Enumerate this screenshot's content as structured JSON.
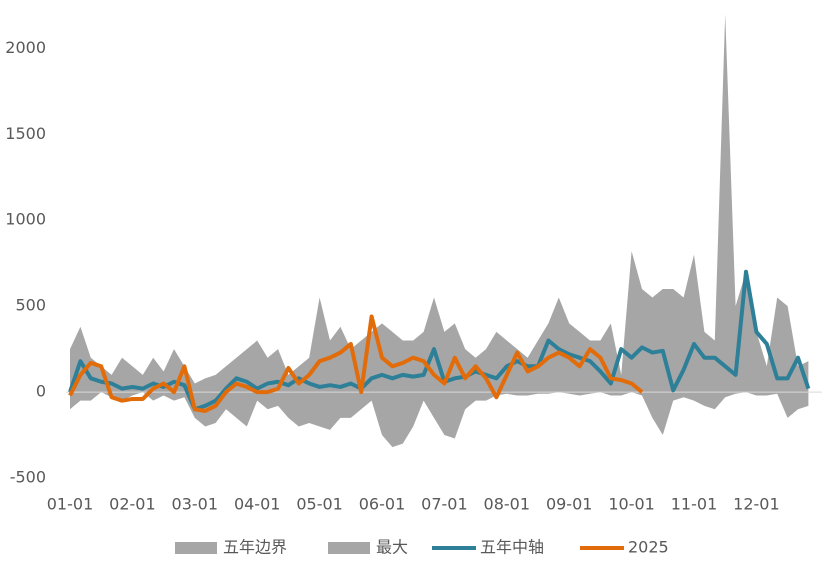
{
  "chart_data": {
    "type": "line",
    "categories": [
      "01-01",
      null,
      null,
      null,
      null,
      null,
      "02-01",
      null,
      null,
      null,
      null,
      null,
      "03-01",
      null,
      null,
      null,
      null,
      null,
      "04-01",
      null,
      null,
      null,
      null,
      null,
      "05-01",
      null,
      null,
      null,
      null,
      null,
      "06-01",
      null,
      null,
      null,
      null,
      null,
      "07-01",
      null,
      null,
      null,
      null,
      null,
      "08-01",
      null,
      null,
      null,
      null,
      null,
      "09-01",
      null,
      null,
      null,
      null,
      null,
      "10-01",
      null,
      null,
      null,
      null,
      null,
      "11-01",
      null,
      null,
      null,
      null,
      null,
      "12-01",
      null,
      null,
      null,
      null,
      null
    ],
    "ylim": [
      -500,
      2200
    ],
    "yticks": [
      -500,
      0,
      500,
      1000,
      1500,
      2000
    ],
    "series": [
      {
        "name": "五年边界",
        "kind": "area",
        "color": "#a6a6a6",
        "values": [
          -100,
          -50,
          -50,
          0,
          -30,
          -50,
          -20,
          0,
          -50,
          -20,
          -50,
          -30,
          -150,
          -200,
          -180,
          -100,
          -150,
          -200,
          -50,
          -100,
          -80,
          -150,
          -200,
          -180,
          -200,
          -220,
          -150,
          -150,
          -100,
          -50,
          -250,
          -320,
          -300,
          -200,
          -50,
          -150,
          -250,
          -270,
          -100,
          -50,
          -50,
          -20,
          -10,
          -20,
          -20,
          -10,
          -10,
          0,
          -10,
          -20,
          -10,
          0,
          -20,
          -20,
          0,
          -20,
          -150,
          -250,
          -50,
          -30,
          -50,
          -80,
          -100,
          -30,
          -10,
          0,
          -20,
          -20,
          -10,
          -150,
          -100,
          -80
        ]
      },
      {
        "name": "最大",
        "kind": "area",
        "color": "#a6a6a6",
        "values": [
          250,
          380,
          200,
          150,
          100,
          200,
          150,
          100,
          200,
          120,
          250,
          150,
          50,
          80,
          100,
          150,
          200,
          250,
          300,
          200,
          250,
          100,
          150,
          200,
          550,
          300,
          380,
          250,
          300,
          350,
          400,
          350,
          300,
          300,
          350,
          550,
          350,
          400,
          250,
          200,
          250,
          350,
          300,
          250,
          200,
          300,
          400,
          550,
          400,
          350,
          300,
          300,
          400,
          100,
          820,
          600,
          550,
          600,
          600,
          550,
          800,
          350,
          300,
          2200,
          500,
          700,
          350,
          150,
          550,
          500,
          150,
          180
        ]
      },
      {
        "name": "五年中轴",
        "kind": "line",
        "color": "#2e7f98",
        "values": [
          0,
          180,
          80,
          60,
          50,
          20,
          30,
          20,
          50,
          30,
          60,
          40,
          -100,
          -80,
          -50,
          20,
          80,
          60,
          20,
          50,
          60,
          40,
          80,
          50,
          30,
          40,
          30,
          50,
          20,
          80,
          100,
          80,
          100,
          90,
          100,
          250,
          60,
          80,
          90,
          120,
          100,
          80,
          150,
          180,
          150,
          150,
          300,
          250,
          220,
          200,
          180,
          120,
          50,
          250,
          200,
          260,
          230,
          240,
          10,
          130,
          280,
          200,
          200,
          150,
          100,
          700,
          350,
          280,
          80,
          80,
          200,
          20
        ]
      },
      {
        "name": "2025",
        "kind": "line",
        "color": "#e36c0a",
        "values": [
          -20,
          100,
          170,
          150,
          -30,
          -50,
          -40,
          -40,
          20,
          50,
          0,
          150,
          -100,
          -110,
          -80,
          0,
          50,
          30,
          0,
          0,
          20,
          140,
          50,
          100,
          180,
          200,
          230,
          280,
          0,
          440,
          200,
          150,
          170,
          200,
          180,
          100,
          50,
          200,
          80,
          150,
          80,
          -30,
          100,
          230,
          120,
          150,
          200,
          230,
          200,
          150,
          250,
          200,
          80,
          70,
          50,
          0,
          null,
          null,
          null,
          null,
          null,
          null,
          null,
          null,
          null,
          null,
          null,
          null,
          null,
          null,
          null,
          null
        ]
      }
    ]
  }
}
